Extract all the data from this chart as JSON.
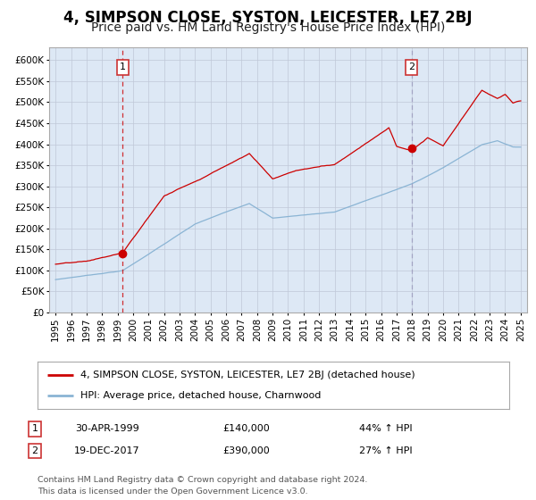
{
  "title": "4, SIMPSON CLOSE, SYSTON, LEICESTER, LE7 2BJ",
  "subtitle": "Price paid vs. HM Land Registry's House Price Index (HPI)",
  "sale1_date": "30-APR-1999",
  "sale1_price": 140000,
  "sale1_label": "44% ↑ HPI",
  "sale2_date": "19-DEC-2017",
  "sale2_price": 390000,
  "sale2_label": "27% ↑ HPI",
  "sale1_year": 1999.33,
  "sale2_year": 2017.96,
  "legend_line1": "4, SIMPSON CLOSE, SYSTON, LEICESTER, LE7 2BJ (detached house)",
  "legend_line2": "HPI: Average price, detached house, Charnwood",
  "footer": "Contains HM Land Registry data © Crown copyright and database right 2024.\nThis data is licensed under the Open Government Licence v3.0.",
  "red_color": "#cc0000",
  "blue_color": "#8ab4d4",
  "bg_color": "#dde8f5",
  "grid_color": "#c0c8d8",
  "ylim_min": 0,
  "ylim_max": 630000,
  "xlim_min": 1994.6,
  "xlim_max": 2025.4,
  "title_fontsize": 12,
  "subtitle_fontsize": 10,
  "axis_fontsize": 7.5
}
